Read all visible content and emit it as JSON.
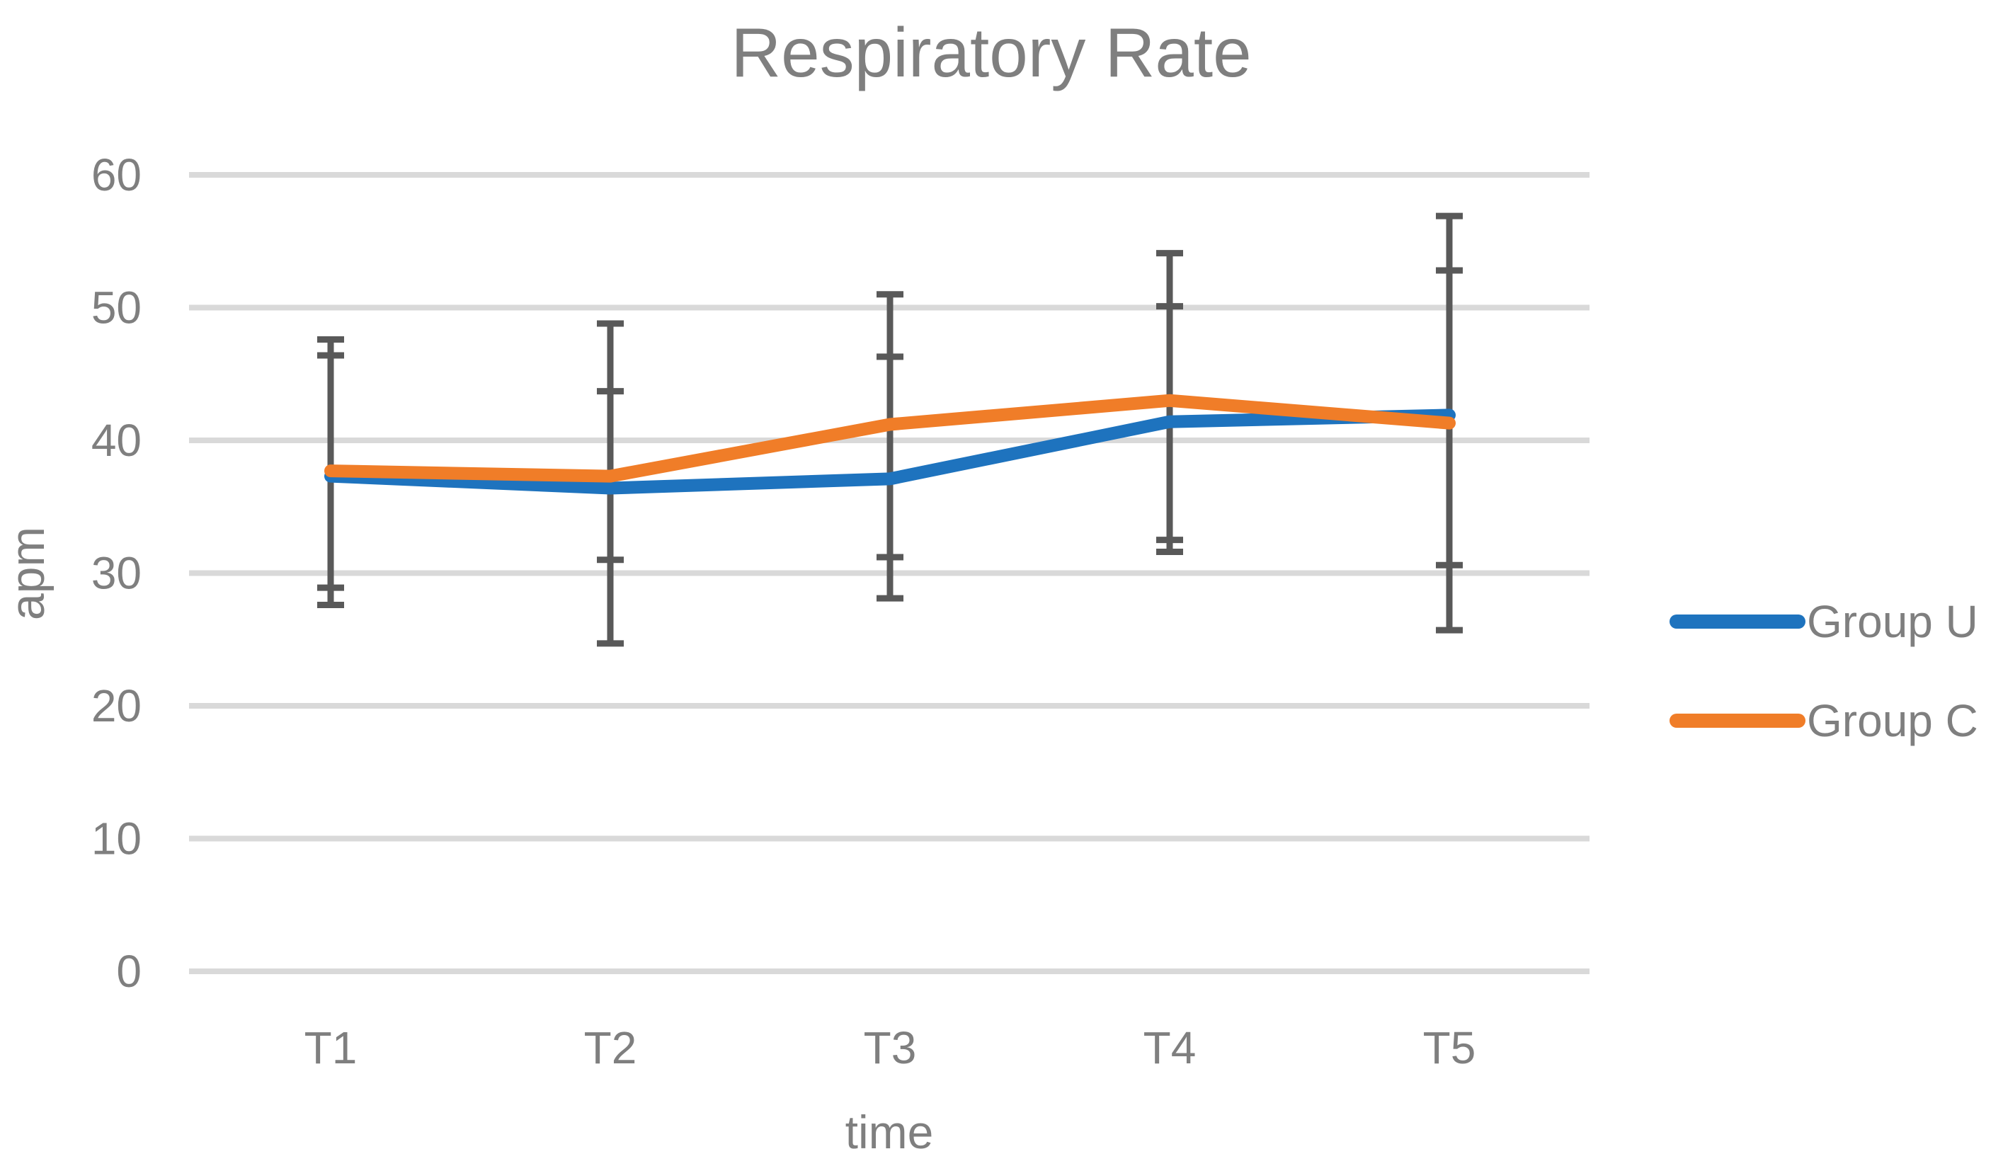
{
  "title": "Respiratory Rate",
  "y_axis": {
    "label": "apm",
    "ticks": [
      0,
      10,
      20,
      30,
      40,
      50,
      60
    ],
    "min": 0,
    "max": 60
  },
  "x_axis": {
    "label": "time",
    "categories": [
      "T1",
      "T2",
      "T3",
      "T4",
      "T5"
    ]
  },
  "legend": {
    "items": [
      {
        "label": "Group U",
        "color": "#1E73BE"
      },
      {
        "label": "Group C",
        "color": "#F07D28"
      }
    ]
  },
  "colors": {
    "gridline": "#D9D9D9",
    "error_bar": "#595959",
    "text": "#7F7F7F"
  },
  "chart_data": {
    "type": "line",
    "title": "Respiratory Rate",
    "xlabel": "time",
    "ylabel": "apm",
    "ylim": [
      0,
      60
    ],
    "grid": true,
    "legend_position": "right",
    "categories": [
      "T1",
      "T2",
      "T3",
      "T4",
      "T5"
    ],
    "series": [
      {
        "name": "Group U",
        "color": "#1E73BE",
        "values": [
          37.3,
          36.4,
          37.1,
          41.4,
          41.9
        ],
        "error_top": [
          46.4,
          48.8,
          46.3,
          50.1,
          52.8
        ],
        "error_bottom": [
          28.9,
          24.7,
          28.1,
          31.6,
          30.6
        ]
      },
      {
        "name": "Group C",
        "color": "#F07D28",
        "values": [
          37.7,
          37.3,
          41.2,
          43.0,
          41.3
        ],
        "error_top": [
          47.6,
          43.7,
          51.0,
          54.1,
          56.9
        ],
        "error_bottom": [
          27.6,
          31.0,
          31.2,
          32.5,
          25.7
        ]
      }
    ]
  }
}
